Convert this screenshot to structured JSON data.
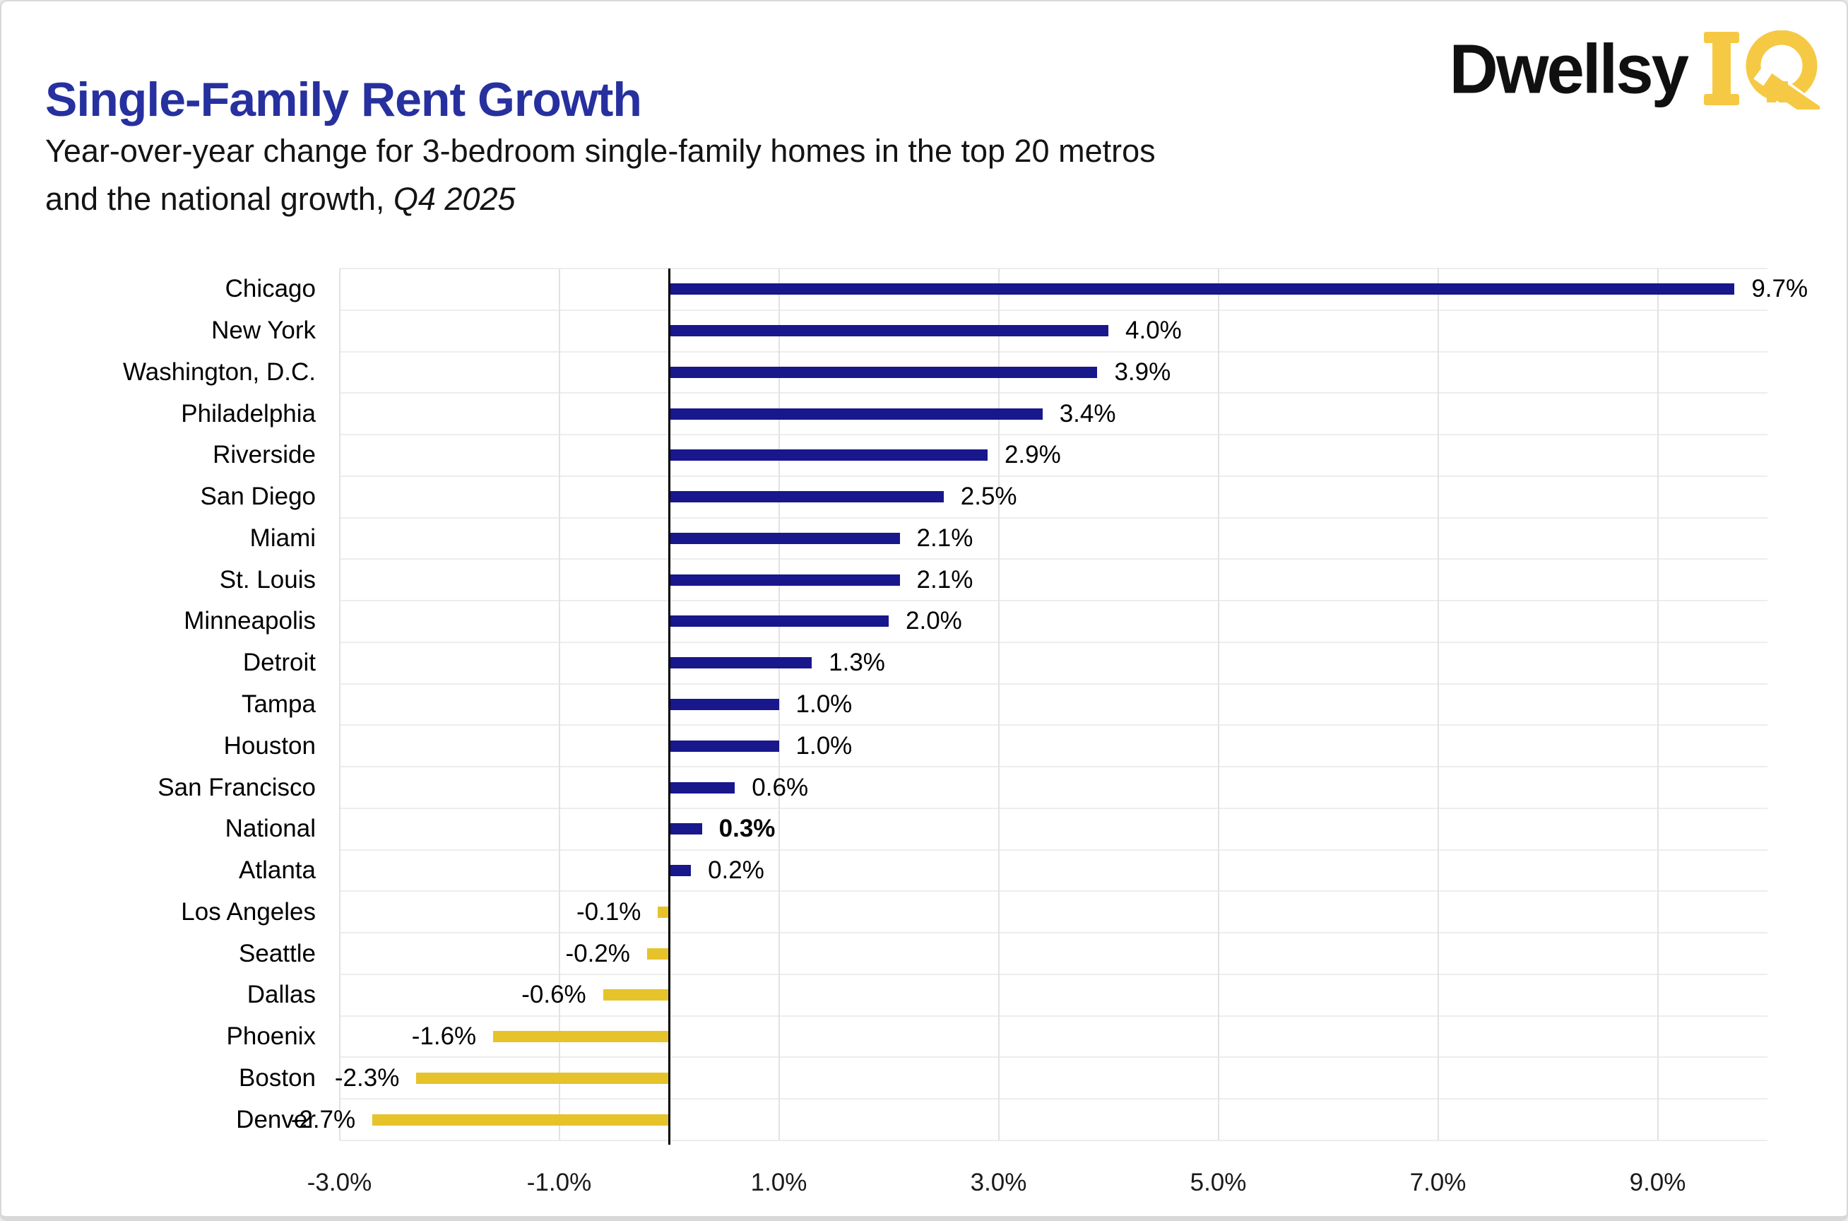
{
  "header": {
    "title": "Single-Family Rent Growth",
    "subtitle_line1": "Year-over-year change for 3-bedroom single-family homes in the top 20 metros",
    "subtitle_line2_prefix": "and the national growth, ",
    "subtitle_period": "Q4 2025"
  },
  "logo": {
    "brand": "Dwellsy",
    "suffix": "IQ",
    "brand_color": "#101010",
    "accent_color": "#f6c944",
    "icon": "house-window-icon"
  },
  "chart_data": {
    "type": "bar",
    "orientation": "horizontal",
    "title": "Single-Family Rent Growth",
    "subtitle": "Year-over-year change for 3-bedroom single-family homes in the top 20 metros and the national growth, Q4 2025",
    "categories": [
      "Chicago",
      "New York",
      "Washington, D.C.",
      "Philadelphia",
      "Riverside",
      "San Diego",
      "Miami",
      "St. Louis",
      "Minneapolis",
      "Detroit",
      "Tampa",
      "Houston",
      "San Francisco",
      "National",
      "Atlanta",
      "Los Angeles",
      "Seattle",
      "Dallas",
      "Phoenix",
      "Boston",
      "Denver"
    ],
    "values": [
      9.7,
      4.0,
      3.9,
      3.4,
      2.9,
      2.5,
      2.1,
      2.1,
      2.0,
      1.3,
      1.0,
      1.0,
      0.6,
      0.3,
      0.2,
      -0.1,
      -0.2,
      -0.6,
      -1.6,
      -2.3,
      -2.7
    ],
    "value_labels": [
      "9.7%",
      "4.0%",
      "3.9%",
      "3.4%",
      "2.9%",
      "2.5%",
      "2.1%",
      "2.1%",
      "2.0%",
      "1.3%",
      "1.0%",
      "1.0%",
      "0.6%",
      "0.3%",
      "0.2%",
      "-0.1%",
      "-0.2%",
      "-0.6%",
      "-1.6%",
      "-2.3%",
      "-2.7%"
    ],
    "emphasized_category": "National",
    "xlim": [
      -3.0,
      10.0
    ],
    "x_ticks": [
      {
        "value": -3.0,
        "label": "-3.0%"
      },
      {
        "value": -1.0,
        "label": "-1.0%"
      },
      {
        "value": 1.0,
        "label": "1.0%"
      },
      {
        "value": 3.0,
        "label": "3.0%"
      },
      {
        "value": 5.0,
        "label": "5.0%"
      },
      {
        "value": 7.0,
        "label": "7.0%"
      },
      {
        "value": 9.0,
        "label": "9.0%"
      }
    ],
    "grid": true,
    "legend_position": "none",
    "positive_color": "#18178c",
    "negative_color": "#e6c32a",
    "zero_axis_color": "#000000"
  }
}
